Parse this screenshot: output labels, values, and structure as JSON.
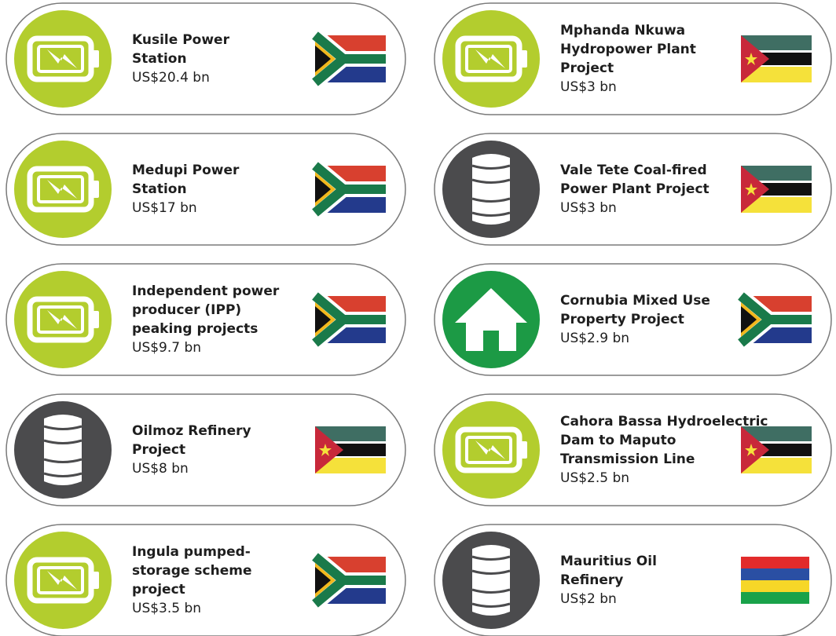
{
  "cards": [
    {
      "name": [
        "Kusile Power",
        "Station"
      ],
      "value": "US$20.4 bn"
    },
    {
      "name": [
        "Mphanda Nkuwa",
        "Hydropower Plant",
        "Project"
      ],
      "value": "US$3 bn"
    },
    {
      "name": [
        "Medupi Power",
        "Station"
      ],
      "value": "US$17 bn"
    },
    {
      "name": [
        "Vale Tete Coal-fired",
        "Power Plant Project"
      ],
      "value": "US$3 bn"
    },
    {
      "name": [
        "Independent power",
        "producer (IPP)",
        "peaking projects"
      ],
      "value": "US$9.7 bn"
    },
    {
      "name": [
        "Cornubia Mixed Use",
        "Property Project"
      ],
      "value": "US$2.9 bn"
    },
    {
      "name": [
        "Oilmoz Refinery",
        "Project"
      ],
      "value": "US$8 bn"
    },
    {
      "name": [
        "Cahora Bassa Hydroelectric",
        "Dam to Maputo",
        "Transmission Line"
      ],
      "value": "US$2.5 bn"
    },
    {
      "name": [
        "Ingula pumped-",
        "storage scheme",
        "project"
      ],
      "value": "US$3.5 bn"
    },
    {
      "name": [
        "Mauritius Oil",
        "Refinery"
      ],
      "value": "US$2 bn"
    }
  ]
}
